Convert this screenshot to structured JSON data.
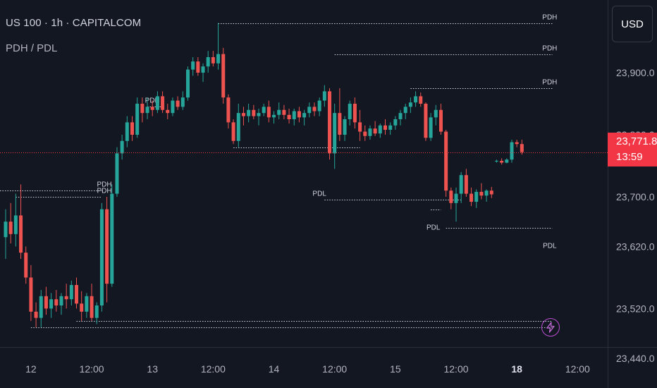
{
  "legend": {
    "symbol": "US 100 · 1h · CAPITALCOM",
    "indicator": "PDH / PDL"
  },
  "currency_button": "USD",
  "last_price": {
    "value": "23,771.8",
    "countdown": "13:59",
    "price": 23771.8
  },
  "colors": {
    "background": "#131722",
    "up": "#26a69a",
    "down": "#ef5350",
    "level_line": "#d1d4dc",
    "price_line": "#f23645",
    "axis_text": "#b2b5be"
  },
  "chart_data": {
    "type": "candlestick",
    "ylim": [
      23440,
      24030
    ],
    "y_ticks": [
      {
        "value": 23900,
        "label": "23,900.0"
      },
      {
        "value": 23800,
        "label": "23,800.0"
      },
      {
        "value": 23700,
        "label": "23,700.0"
      },
      {
        "value": 23620,
        "label": "23,620.0"
      },
      {
        "value": 23520,
        "label": "23,520.0"
      },
      {
        "value": 23440,
        "label": "23,440.0"
      }
    ],
    "x_ticks": [
      {
        "i": 5,
        "label": "12"
      },
      {
        "i": 17,
        "label": "12:00"
      },
      {
        "i": 29,
        "label": "13"
      },
      {
        "i": 41,
        "label": "12:00"
      },
      {
        "i": 53,
        "label": "14"
      },
      {
        "i": 65,
        "label": "12:00"
      },
      {
        "i": 77,
        "label": "15"
      },
      {
        "i": 89,
        "label": "12:00"
      },
      {
        "i": 101,
        "label": "18",
        "bold": true
      },
      {
        "i": 113,
        "label": "12:00"
      }
    ],
    "candles": [
      [
        23635,
        23680,
        23600,
        23660
      ],
      [
        23660,
        23690,
        23625,
        23640
      ],
      [
        23640,
        23705,
        23620,
        23670
      ],
      [
        23670,
        23720,
        23600,
        23610
      ],
      [
        23610,
        23620,
        23560,
        23570
      ],
      [
        23570,
        23590,
        23500,
        23515
      ],
      [
        23515,
        23530,
        23490,
        23505
      ],
      [
        23505,
        23550,
        23490,
        23540
      ],
      [
        23540,
        23555,
        23510,
        23520
      ],
      [
        23520,
        23545,
        23505,
        23535
      ],
      [
        23535,
        23550,
        23515,
        23525
      ],
      [
        23525,
        23545,
        23510,
        23540
      ],
      [
        23540,
        23560,
        23520,
        23535
      ],
      [
        23535,
        23565,
        23525,
        23558
      ],
      [
        23558,
        23570,
        23520,
        23528
      ],
      [
        23528,
        23548,
        23500,
        23515
      ],
      [
        23515,
        23545,
        23505,
        23540
      ],
      [
        23540,
        23560,
        23500,
        23505
      ],
      [
        23505,
        23530,
        23495,
        23525
      ],
      [
        23525,
        23690,
        23515,
        23680
      ],
      [
        23680,
        23700,
        23530,
        23560
      ],
      [
        23560,
        23720,
        23555,
        23705
      ],
      [
        23705,
        23780,
        23700,
        23770
      ],
      [
        23770,
        23800,
        23760,
        23790
      ],
      [
        23790,
        23830,
        23780,
        23820
      ],
      [
        23820,
        23830,
        23790,
        23800
      ],
      [
        23800,
        23860,
        23795,
        23850
      ],
      [
        23850,
        23860,
        23820,
        23835
      ],
      [
        23835,
        23860,
        23825,
        23845
      ],
      [
        23845,
        23855,
        23830,
        23840
      ],
      [
        23840,
        23870,
        23835,
        23862
      ],
      [
        23862,
        23870,
        23835,
        23840
      ],
      [
        23840,
        23850,
        23825,
        23835
      ],
      [
        23835,
        23860,
        23830,
        23855
      ],
      [
        23855,
        23862,
        23840,
        23845
      ],
      [
        23845,
        23870,
        23840,
        23860
      ],
      [
        23860,
        23910,
        23855,
        23905
      ],
      [
        23905,
        23925,
        23895,
        23918
      ],
      [
        23918,
        23925,
        23895,
        23900
      ],
      [
        23900,
        23915,
        23885,
        23910
      ],
      [
        23910,
        23935,
        23900,
        23925
      ],
      [
        23925,
        23935,
        23910,
        23915
      ],
      [
        23915,
        23980,
        23905,
        23930
      ],
      [
        23930,
        23940,
        23850,
        23860
      ],
      [
        23860,
        23865,
        23810,
        23820
      ],
      [
        23820,
        23825,
        23785,
        23790
      ],
      [
        23790,
        23850,
        23780,
        23835
      ],
      [
        23835,
        23845,
        23815,
        23830
      ],
      [
        23830,
        23850,
        23820,
        23840
      ],
      [
        23840,
        23848,
        23825,
        23830
      ],
      [
        23830,
        23842,
        23815,
        23835
      ],
      [
        23835,
        23850,
        23830,
        23845
      ],
      [
        23845,
        23855,
        23820,
        23828
      ],
      [
        23828,
        23838,
        23818,
        23832
      ],
      [
        23832,
        23852,
        23825,
        23840
      ],
      [
        23840,
        23848,
        23825,
        23832
      ],
      [
        23832,
        23842,
        23818,
        23825
      ],
      [
        23825,
        23842,
        23815,
        23838
      ],
      [
        23838,
        23845,
        23820,
        23828
      ],
      [
        23828,
        23840,
        23815,
        23835
      ],
      [
        23835,
        23852,
        23828,
        23845
      ],
      [
        23845,
        23852,
        23830,
        23838
      ],
      [
        23838,
        23860,
        23830,
        23855
      ],
      [
        23855,
        23880,
        23845,
        23870
      ],
      [
        23870,
        23875,
        23760,
        23770
      ],
      [
        23770,
        23850,
        23745,
        23835
      ],
      [
        23835,
        23875,
        23790,
        23800
      ],
      [
        23800,
        23830,
        23790,
        23825
      ],
      [
        23825,
        23855,
        23815,
        23850
      ],
      [
        23850,
        23860,
        23810,
        23820
      ],
      [
        23820,
        23840,
        23790,
        23805
      ],
      [
        23805,
        23815,
        23790,
        23798
      ],
      [
        23798,
        23815,
        23792,
        23810
      ],
      [
        23810,
        23822,
        23798,
        23802
      ],
      [
        23802,
        23818,
        23795,
        23815
      ],
      [
        23815,
        23825,
        23800,
        23808
      ],
      [
        23808,
        23820,
        23800,
        23815
      ],
      [
        23815,
        23830,
        23808,
        23825
      ],
      [
        23825,
        23840,
        23815,
        23835
      ],
      [
        23835,
        23850,
        23825,
        23845
      ],
      [
        23845,
        23860,
        23835,
        23852
      ],
      [
        23852,
        23870,
        23845,
        23862
      ],
      [
        23862,
        23868,
        23845,
        23850
      ],
      [
        23850,
        23852,
        23790,
        23795
      ],
      [
        23795,
        23835,
        23790,
        23828
      ],
      [
        23828,
        23848,
        23815,
        23840
      ],
      [
        23840,
        23850,
        23800,
        23805
      ],
      [
        23805,
        23808,
        23700,
        23710
      ],
      [
        23710,
        23715,
        23680,
        23690
      ],
      [
        23690,
        23715,
        23660,
        23705
      ],
      [
        23705,
        23740,
        23690,
        23735
      ],
      [
        23735,
        23745,
        23700,
        23705
      ],
      [
        23705,
        23715,
        23685,
        23692
      ],
      [
        23692,
        23712,
        23682,
        23708
      ],
      [
        23708,
        23722,
        23696,
        23702
      ],
      [
        23702,
        23712,
        23692,
        23710
      ],
      [
        23710,
        23716,
        23698,
        23704
      ],
      [
        23758,
        23760,
        23755,
        23758
      ],
      [
        23758,
        23762,
        23752,
        23755
      ],
      [
        23755,
        23762,
        23754,
        23760
      ],
      [
        23760,
        23792,
        23755,
        23788
      ],
      [
        23788,
        23792,
        23780,
        23785
      ],
      [
        23785,
        23792,
        23768,
        23772
      ]
    ],
    "levels": [
      {
        "label": "PDH",
        "price": 23710,
        "start": -2,
        "end": 19,
        "label_i": 19.5,
        "label_pos": "above"
      },
      {
        "label": "PDH",
        "price": 23700,
        "start": 2,
        "end": 19,
        "label_i": 19.5,
        "label_pos": "above"
      },
      {
        "label": "PDL",
        "price": 23490,
        "start": 5,
        "end": 108,
        "label_i": 0,
        "label_pos": "none"
      },
      {
        "label": "PDL",
        "price": 23500,
        "start": 14,
        "end": 108,
        "label_i": 0,
        "label_pos": "none"
      },
      {
        "label": "PDH",
        "price": 23980,
        "start": 42,
        "end": 108,
        "label_i": 107.5,
        "label_pos": "above"
      },
      {
        "label": "PDL",
        "price": 23780,
        "start": 45,
        "end": 70,
        "label_i": 0,
        "label_pos": "none"
      },
      {
        "label": "PDH",
        "price": 23930,
        "start": 65,
        "end": 108,
        "label_i": 107.5,
        "label_pos": "above"
      },
      {
        "label": "PDL",
        "price": 23695,
        "start": 63,
        "end": 90,
        "label_i": 62,
        "label_pos": "above"
      },
      {
        "label": "PDH",
        "price": 23875,
        "start": 80,
        "end": 108,
        "label_i": 107.5,
        "label_pos": "above"
      },
      {
        "label": "PDL",
        "price": 23650,
        "start": 87,
        "end": 108,
        "label_i": 107.5,
        "label_pos": "below"
      },
      {
        "label": "PDH",
        "price": 23845,
        "start": 28,
        "end": 31,
        "label_i": 29,
        "label_pos": "above"
      },
      {
        "label": "PDL",
        "price": 23680,
        "start": 84,
        "end": 86,
        "label_i": 84.5,
        "label_pos": "below"
      }
    ]
  }
}
